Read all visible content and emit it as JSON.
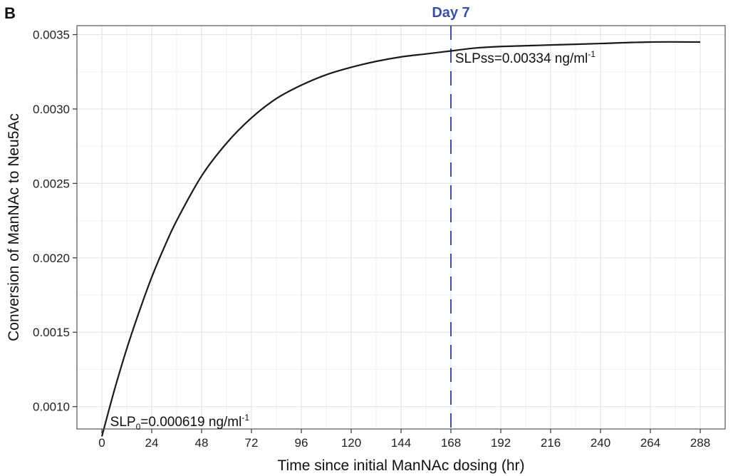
{
  "panel_label": "B",
  "chart_data": {
    "type": "line",
    "title": "",
    "xlabel": "Time since initial ManNAc dosing (hr)",
    "ylabel": "Conversion of ManNAc to Neu5Ac",
    "xlim": [
      -12,
      300
    ],
    "ylim": [
      0.00085,
      0.00356
    ],
    "x_ticks": [
      0,
      24,
      48,
      72,
      96,
      120,
      144,
      168,
      192,
      216,
      240,
      264,
      288
    ],
    "y_ticks": [
      0.001,
      0.0015,
      0.002,
      0.0025,
      0.003,
      0.0035
    ],
    "y_tick_labels": [
      "0.0010",
      "0.0015",
      "0.0020",
      "0.0025",
      "0.0030",
      "0.0035"
    ],
    "grid": true,
    "series": [
      {
        "x": [
          0,
          6,
          12,
          18,
          24,
          30,
          36,
          48,
          60,
          72,
          84,
          96,
          108,
          120,
          132,
          144,
          156,
          168,
          180,
          192,
          216,
          240,
          264,
          288
        ],
        "y": [
          0.0008,
          0.00111,
          0.00139,
          0.00164,
          0.00187,
          0.00207,
          0.00225,
          0.00255,
          0.00277,
          0.00294,
          0.00307,
          0.00316,
          0.00323,
          0.00328,
          0.00332,
          0.00335,
          0.00337,
          0.00339,
          0.00341,
          0.00342,
          0.00343,
          0.00344,
          0.00345,
          0.00345
        ],
        "color": "#1a1a1a"
      }
    ],
    "reference_line": {
      "x": 168,
      "label": "Day 7",
      "style": "dashed",
      "color": "#3c4fa8"
    },
    "annotations": [
      {
        "id": "slp0",
        "prefix": "SLP",
        "sub": "0",
        "text": "=0.000619 ng/ml",
        "sup": "-1",
        "x": 4,
        "y": 0.00087
      },
      {
        "id": "slpss",
        "prefix": "SLPss",
        "sub": "",
        "text": "=0.00334 ng/ml",
        "sup": "-1",
        "x": 170,
        "y": 0.00331
      }
    ]
  },
  "colors": {
    "grid_major": "#e4e4e4",
    "grid_minor": "#f2f2f2",
    "panel_border": "#555555",
    "line": "#1a1a1a",
    "ref_line": "#3c4fa8"
  }
}
